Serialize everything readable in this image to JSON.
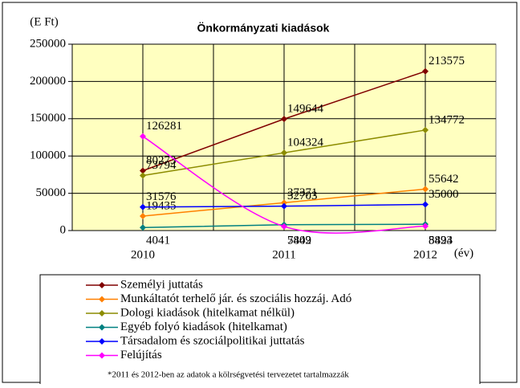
{
  "chart_data": {
    "type": "line",
    "title": "Önkormányzati kiadások",
    "y_label": "(E Ft)",
    "x_label": "(év)",
    "note": "*2011 és 2012-ben az adatok a kölrségvetési tervezetet tartalmazzák",
    "categories": [
      "2010",
      "2011",
      "2012"
    ],
    "series": [
      {
        "name": "Személyi juttatás",
        "color": "#800000",
        "values": [
          80273,
          149644,
          213575
        ]
      },
      {
        "name": "Munkáltatót terhelő jár. és szociális hozzáj. Adó",
        "color": "#ff8000",
        "values": [
          19435,
          37371,
          55642
        ]
      },
      {
        "name": "Dologi kiadások (hitelkamat nélkül)",
        "color": "#8c8c00",
        "values": [
          73794,
          104324,
          134772
        ]
      },
      {
        "name": "Egyéb folyó kiadások (hitelkamat)",
        "color": "#008080",
        "values": [
          4041,
          7802,
          8424
        ]
      },
      {
        "name": "Társadalom és szociálpolitikai juttatás",
        "color": "#0000ff",
        "values": [
          31576,
          32703,
          35000
        ]
      },
      {
        "name": "Felújítás",
        "color": "#ff00ff",
        "smooth": true,
        "values": [
          126281,
          5449,
          5893
        ]
      }
    ],
    "ylim": [
      0,
      250000
    ],
    "yticks": [
      0,
      50000,
      100000,
      150000,
      200000,
      250000
    ],
    "grid": true,
    "plot_background": "#ffffc0",
    "legend": "bottom"
  }
}
